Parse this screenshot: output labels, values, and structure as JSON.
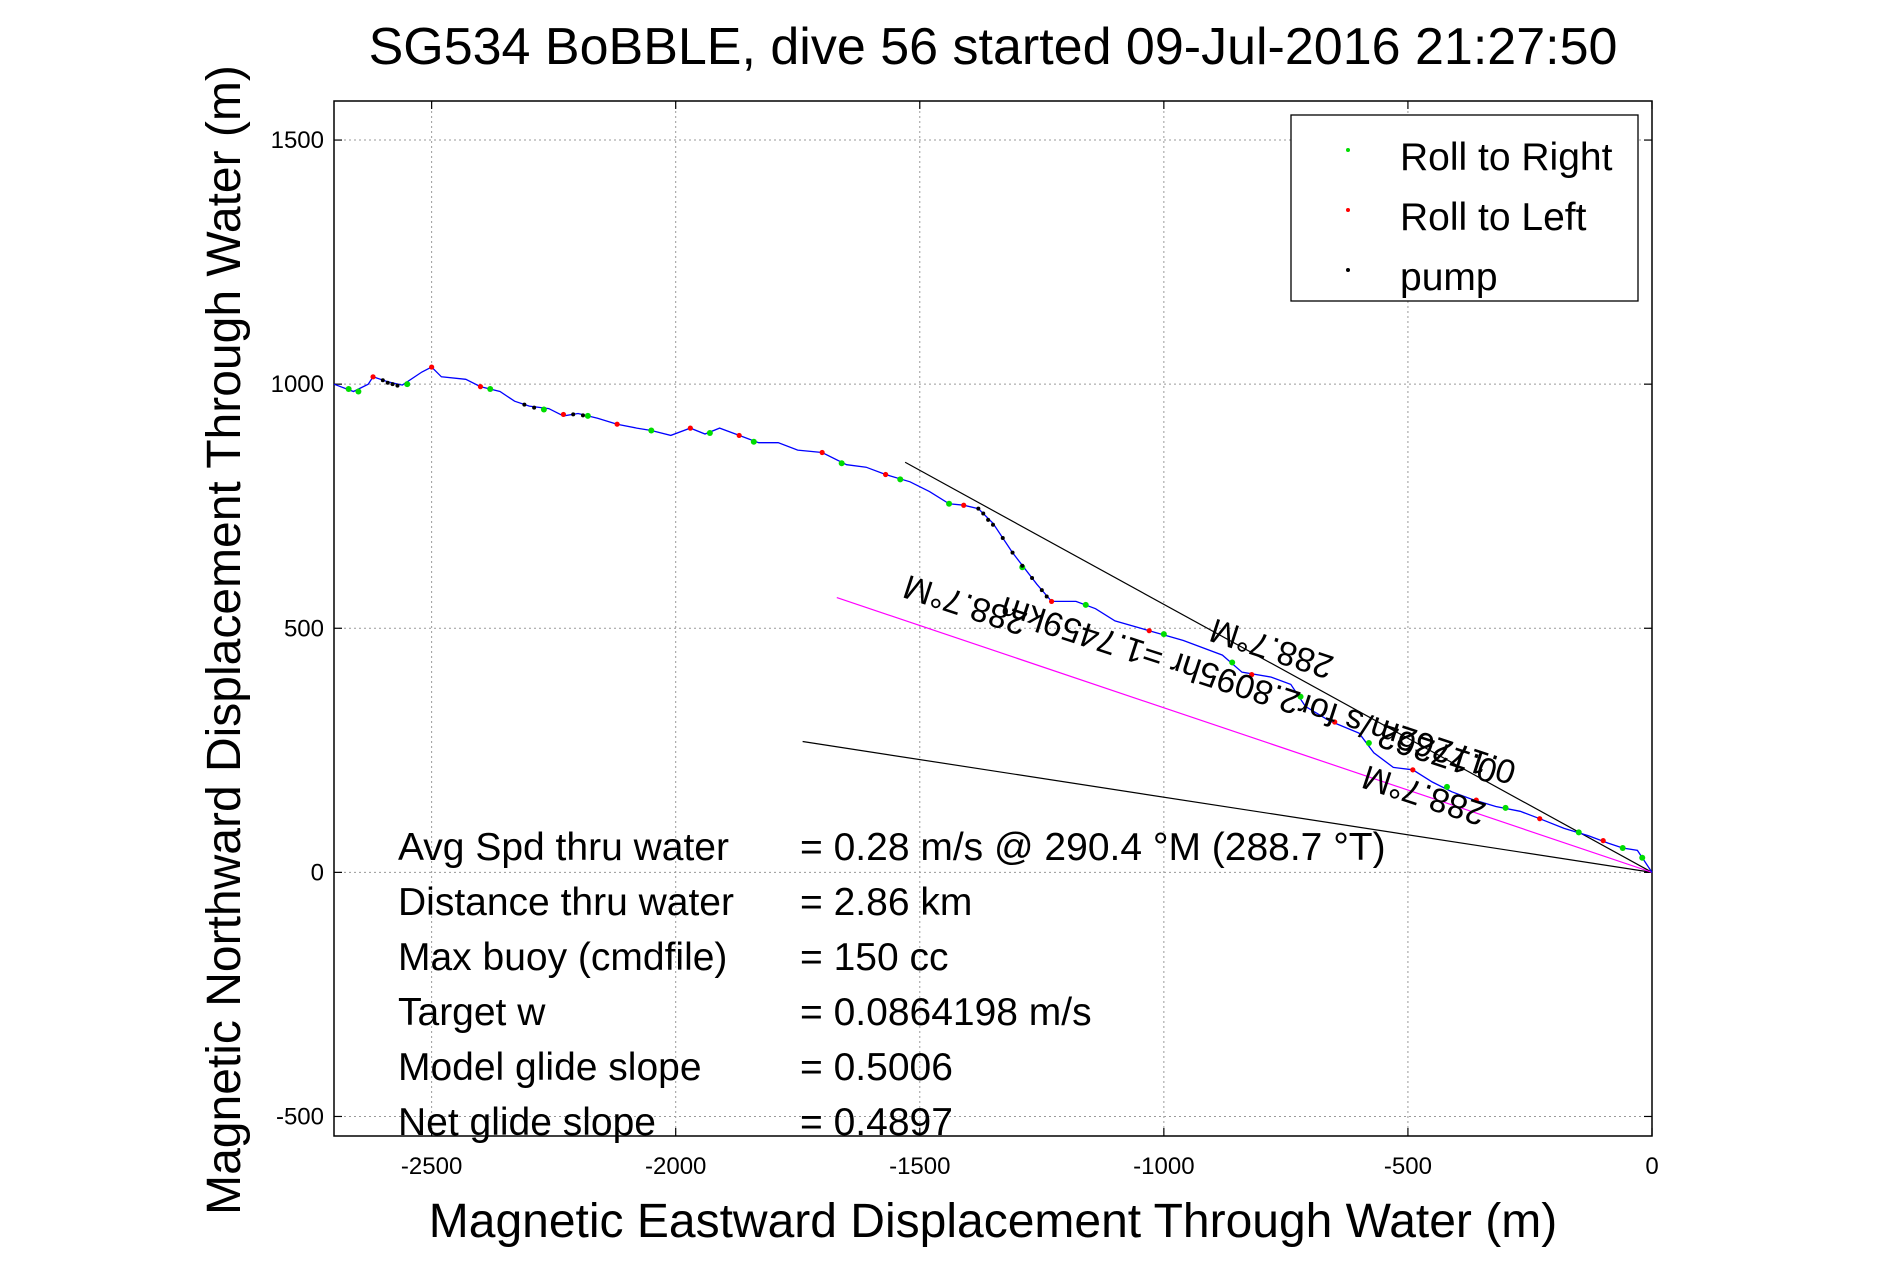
{
  "chart_data": {
    "type": "line",
    "title": "SG534 BoBBLE, dive 56 started 09-Jul-2016 21:27:50",
    "xlabel": "Magnetic Eastward Displacement Through Water (m)",
    "ylabel": "Magnetic Northward Displacement Through Water (m)",
    "xlim": [
      -2700,
      0
    ],
    "ylim": [
      -540,
      1580
    ],
    "xticks": [
      -2500,
      -2000,
      -1500,
      -1000,
      -500,
      0
    ],
    "yticks": [
      -500,
      0,
      500,
      1000,
      1500
    ],
    "grid": true,
    "legend_position": "top-right",
    "legend": [
      {
        "label": "Roll to Right",
        "color": "#00dd00"
      },
      {
        "label": "Roll to Left",
        "color": "#ff0000"
      },
      {
        "label": "pump",
        "color": "#000000"
      }
    ],
    "track_color": "#0000ff",
    "track": [
      {
        "x": -2700,
        "y": 1000
      },
      {
        "x": -2660,
        "y": 985
      },
      {
        "x": -2630,
        "y": 1000
      },
      {
        "x": -2620,
        "y": 1015
      },
      {
        "x": -2590,
        "y": 1005
      },
      {
        "x": -2560,
        "y": 998
      },
      {
        "x": -2520,
        "y": 1025
      },
      {
        "x": -2500,
        "y": 1035
      },
      {
        "x": -2480,
        "y": 1015
      },
      {
        "x": -2430,
        "y": 1010
      },
      {
        "x": -2400,
        "y": 995
      },
      {
        "x": -2360,
        "y": 985
      },
      {
        "x": -2330,
        "y": 965
      },
      {
        "x": -2300,
        "y": 955
      },
      {
        "x": -2260,
        "y": 950
      },
      {
        "x": -2230,
        "y": 935
      },
      {
        "x": -2200,
        "y": 940
      },
      {
        "x": -2160,
        "y": 930
      },
      {
        "x": -2120,
        "y": 918
      },
      {
        "x": -2080,
        "y": 910
      },
      {
        "x": -2050,
        "y": 905
      },
      {
        "x": -2010,
        "y": 895
      },
      {
        "x": -1970,
        "y": 910
      },
      {
        "x": -1940,
        "y": 898
      },
      {
        "x": -1910,
        "y": 910
      },
      {
        "x": -1870,
        "y": 895
      },
      {
        "x": -1830,
        "y": 880
      },
      {
        "x": -1790,
        "y": 880
      },
      {
        "x": -1750,
        "y": 865
      },
      {
        "x": -1700,
        "y": 860
      },
      {
        "x": -1650,
        "y": 835
      },
      {
        "x": -1610,
        "y": 830
      },
      {
        "x": -1570,
        "y": 815
      },
      {
        "x": -1520,
        "y": 800
      },
      {
        "x": -1480,
        "y": 780
      },
      {
        "x": -1440,
        "y": 755
      },
      {
        "x": -1410,
        "y": 752
      },
      {
        "x": -1380,
        "y": 745
      },
      {
        "x": -1350,
        "y": 715
      },
      {
        "x": -1310,
        "y": 655
      },
      {
        "x": -1260,
        "y": 590
      },
      {
        "x": -1230,
        "y": 555
      },
      {
        "x": -1180,
        "y": 555
      },
      {
        "x": -1140,
        "y": 540
      },
      {
        "x": -1100,
        "y": 515
      },
      {
        "x": -1030,
        "y": 495
      },
      {
        "x": -960,
        "y": 475
      },
      {
        "x": -880,
        "y": 445
      },
      {
        "x": -840,
        "y": 410
      },
      {
        "x": -780,
        "y": 400
      },
      {
        "x": -740,
        "y": 385
      },
      {
        "x": -710,
        "y": 340
      },
      {
        "x": -660,
        "y": 310
      },
      {
        "x": -600,
        "y": 285
      },
      {
        "x": -570,
        "y": 245
      },
      {
        "x": -530,
        "y": 215
      },
      {
        "x": -490,
        "y": 210
      },
      {
        "x": -450,
        "y": 185
      },
      {
        "x": -410,
        "y": 165
      },
      {
        "x": -370,
        "y": 150
      },
      {
        "x": -320,
        "y": 135
      },
      {
        "x": -270,
        "y": 125
      },
      {
        "x": -230,
        "y": 110
      },
      {
        "x": -180,
        "y": 90
      },
      {
        "x": -130,
        "y": 75
      },
      {
        "x": -90,
        "y": 60
      },
      {
        "x": -60,
        "y": 50
      },
      {
        "x": -30,
        "y": 45
      },
      {
        "x": 0,
        "y": 0
      }
    ],
    "roll_right_markers": [
      {
        "x": -2670,
        "y": 990
      },
      {
        "x": -2650,
        "y": 985
      },
      {
        "x": -2550,
        "y": 1000
      },
      {
        "x": -2380,
        "y": 990
      },
      {
        "x": -2270,
        "y": 948
      },
      {
        "x": -2180,
        "y": 935
      },
      {
        "x": -2050,
        "y": 905
      },
      {
        "x": -1930,
        "y": 900
      },
      {
        "x": -1840,
        "y": 882
      },
      {
        "x": -1660,
        "y": 838
      },
      {
        "x": -1540,
        "y": 805
      },
      {
        "x": -1440,
        "y": 755
      },
      {
        "x": -1290,
        "y": 625
      },
      {
        "x": -1160,
        "y": 548
      },
      {
        "x": -1000,
        "y": 488
      },
      {
        "x": -860,
        "y": 430
      },
      {
        "x": -720,
        "y": 360
      },
      {
        "x": -580,
        "y": 265
      },
      {
        "x": -420,
        "y": 175
      },
      {
        "x": -300,
        "y": 132
      },
      {
        "x": -150,
        "y": 82
      },
      {
        "x": -60,
        "y": 50
      },
      {
        "x": -20,
        "y": 30
      }
    ],
    "roll_left_markers": [
      {
        "x": -2620,
        "y": 1015
      },
      {
        "x": -2500,
        "y": 1035
      },
      {
        "x": -2400,
        "y": 995
      },
      {
        "x": -2230,
        "y": 938
      },
      {
        "x": -2120,
        "y": 918
      },
      {
        "x": -1970,
        "y": 910
      },
      {
        "x": -1870,
        "y": 895
      },
      {
        "x": -1700,
        "y": 860
      },
      {
        "x": -1570,
        "y": 815
      },
      {
        "x": -1410,
        "y": 752
      },
      {
        "x": -1230,
        "y": 555
      },
      {
        "x": -1030,
        "y": 495
      },
      {
        "x": -820,
        "y": 405
      },
      {
        "x": -650,
        "y": 308
      },
      {
        "x": -490,
        "y": 210
      },
      {
        "x": -360,
        "y": 148
      },
      {
        "x": -230,
        "y": 110
      },
      {
        "x": -100,
        "y": 65
      }
    ],
    "pump_markers": [
      {
        "x": -2600,
        "y": 1008
      },
      {
        "x": -2590,
        "y": 1003
      },
      {
        "x": -2580,
        "y": 1000
      },
      {
        "x": -2570,
        "y": 997
      },
      {
        "x": -2310,
        "y": 958
      },
      {
        "x": -2290,
        "y": 952
      },
      {
        "x": -2210,
        "y": 938
      },
      {
        "x": -2190,
        "y": 936
      },
      {
        "x": -1380,
        "y": 745
      },
      {
        "x": -1370,
        "y": 735
      },
      {
        "x": -1360,
        "y": 722
      },
      {
        "x": -1350,
        "y": 712
      },
      {
        "x": -1330,
        "y": 685
      },
      {
        "x": -1310,
        "y": 655
      },
      {
        "x": -1290,
        "y": 628
      },
      {
        "x": -1270,
        "y": 603
      },
      {
        "x": -1250,
        "y": 578
      },
      {
        "x": -1240,
        "y": 565
      }
    ],
    "envelope_lines": [
      {
        "color": "#000000",
        "points": [
          {
            "x": -1530,
            "y": 840
          },
          {
            "x": 0,
            "y": 0
          }
        ]
      },
      {
        "color": "#000000",
        "points": [
          {
            "x": -1740,
            "y": 268
          },
          {
            "x": 0,
            "y": 0
          }
        ]
      }
    ],
    "current_line": {
      "color": "#ff00ff",
      "points": [
        {
          "x": -1670,
          "y": 563
        },
        {
          "x": 0,
          "y": 0
        }
      ]
    },
    "annotations": [
      {
        "text": "288.7°M",
        "x": -1400,
        "y": 570,
        "rotation": 198
      },
      {
        "text": "0.17262m/s for2.8095hr =1.7459km",
        "x": -800,
        "y": 395,
        "rotation": 198
      },
      {
        "text": "288.7°M",
        "x": -800,
        "y": 395,
        "rotation": 198,
        "line": 2
      },
      {
        "text": "288.7°M",
        "x": -460,
        "y": 180,
        "rotation": 198
      },
      {
        "text": "0.17262",
        "x": -460,
        "y": 180,
        "rotation": 198,
        "line": 2
      }
    ]
  },
  "stats": [
    {
      "label": "Avg Spd thru water",
      "value": "=  0.28 m/s @ 290.4 °M (288.7 °T)"
    },
    {
      "label": "Distance thru water",
      "value": "=  2.86 km"
    },
    {
      "label": "Max buoy (cmdfile)",
      "value": "= 150 cc"
    },
    {
      "label": "Target w",
      "value": "= 0.0864198 m/s"
    },
    {
      "label": "Model glide slope",
      "value": "= 0.5006"
    },
    {
      "label": "Net glide slope",
      "value": "= 0.4897"
    }
  ]
}
